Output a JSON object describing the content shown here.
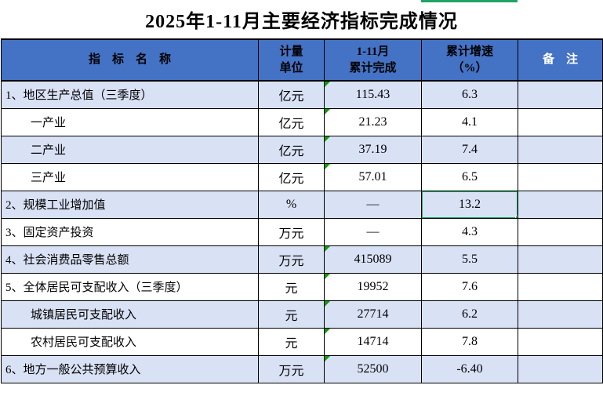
{
  "title": "2025年1-11月主要经济指标完成情况",
  "colors": {
    "header_bg": "#4472C4",
    "row_shade": "#D9E1F5",
    "selection_green": "#21A366",
    "triangle_green": "#0B9E00",
    "border": "#000000",
    "header_text": "#000000",
    "remark_header_text": "#FFFFFF"
  },
  "table": {
    "headers": [
      {
        "line1": "指　标　名　称",
        "line2": "",
        "white": false
      },
      {
        "line1": "计量",
        "line2": "单位",
        "white": false
      },
      {
        "line1": "1-11月",
        "line2": "累计完成",
        "white": false
      },
      {
        "line1": "累计增速",
        "line2": "（%）",
        "white": false
      },
      {
        "line1": "备　注",
        "line2": "",
        "white": true
      }
    ],
    "rows": [
      {
        "name": "1、地区生产总值（三季度）",
        "unit": "亿元",
        "value": "115.43",
        "growth": "6.3",
        "note": "",
        "indent": false,
        "shaded": true,
        "text_flag": true,
        "selected": false
      },
      {
        "name": "一产业",
        "unit": "亿元",
        "value": "21.23",
        "growth": "4.1",
        "note": "",
        "indent": true,
        "shaded": false,
        "text_flag": true,
        "selected": false
      },
      {
        "name": "二产业",
        "unit": "亿元",
        "value": "37.19",
        "growth": "7.4",
        "note": "",
        "indent": true,
        "shaded": true,
        "text_flag": true,
        "selected": false
      },
      {
        "name": "三产业",
        "unit": "亿元",
        "value": "57.01",
        "growth": "6.5",
        "note": "",
        "indent": true,
        "shaded": false,
        "text_flag": true,
        "selected": false
      },
      {
        "name": "2、规模工业增加值",
        "unit": "%",
        "value": "—",
        "growth": "13.2",
        "note": "",
        "indent": false,
        "shaded": true,
        "text_flag": false,
        "selected": true
      },
      {
        "name": "3、固定资产投资",
        "unit": "万元",
        "value": "—",
        "growth": "4.3",
        "note": "",
        "indent": false,
        "shaded": false,
        "text_flag": false,
        "selected": false
      },
      {
        "name": "4、社会消费品零售总额",
        "unit": "万元",
        "value": "415089",
        "growth": "5.5",
        "note": "",
        "indent": false,
        "shaded": true,
        "text_flag": true,
        "selected": false
      },
      {
        "name": "5、全体居民可支配收入（三季度）",
        "unit": "元",
        "value": "19952",
        "growth": "7.6",
        "note": "",
        "indent": false,
        "shaded": false,
        "text_flag": true,
        "selected": false
      },
      {
        "name": "城镇居民可支配收入",
        "unit": "元",
        "value": "27714",
        "growth": "6.2",
        "note": "",
        "indent": true,
        "shaded": true,
        "text_flag": true,
        "selected": false
      },
      {
        "name": "农村居民可支配收入",
        "unit": "元",
        "value": "14714",
        "growth": "7.8",
        "note": "",
        "indent": true,
        "shaded": false,
        "text_flag": true,
        "selected": false
      },
      {
        "name": "6、地方一般公共预算收入",
        "unit": "万元",
        "value": "52500",
        "growth": "-6.40",
        "note": "",
        "indent": false,
        "shaded": true,
        "text_flag": true,
        "selected": false
      }
    ]
  }
}
